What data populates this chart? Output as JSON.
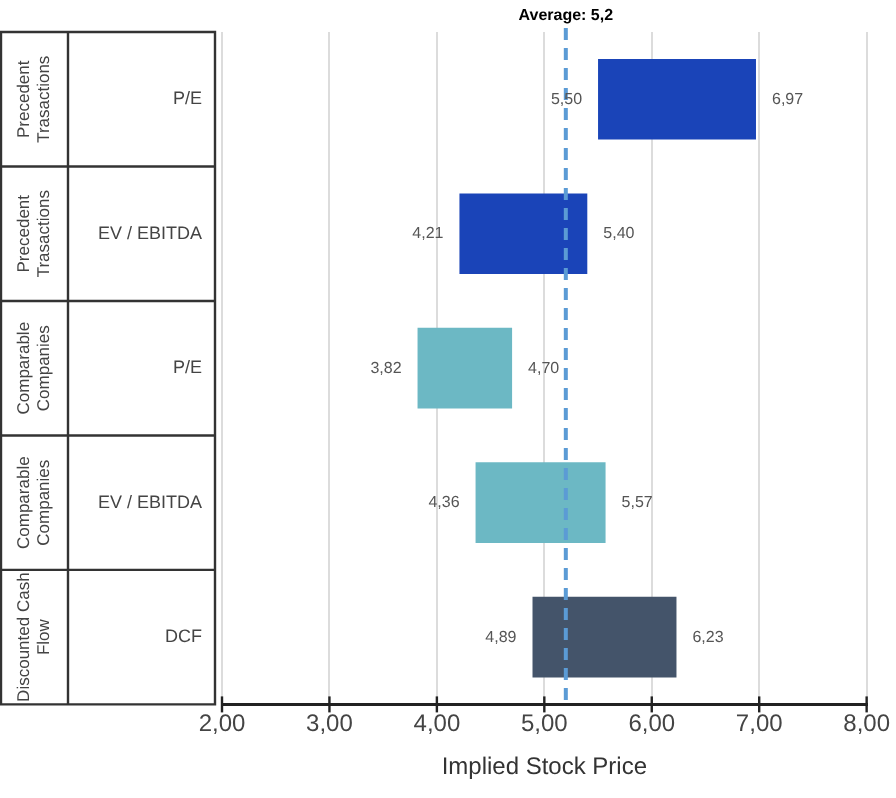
{
  "chart_data": {
    "type": "bar",
    "orientation": "horizontal",
    "xlabel": "Implied Stock Price",
    "categories": [
      "P/E",
      "EV / EBITDA",
      "P/E",
      "EV / EBITDA",
      "DCF"
    ],
    "base": [
      5.5,
      4.21,
      3.82,
      4.36,
      4.89
    ],
    "values": [
      1.47,
      1.19,
      0.88,
      1.21,
      1.34
    ],
    "colors": [
      "#1a44b8",
      "#1a44b8",
      "#6cb8c4",
      "#6cb8c4",
      "#44546a"
    ],
    "xlim": [
      2,
      8
    ],
    "xticks": [
      {
        "value": 2,
        "label": "2,00"
      },
      {
        "value": 3,
        "label": "3,00"
      },
      {
        "value": 4,
        "label": "4,00"
      },
      {
        "value": 5,
        "label": "5,00"
      },
      {
        "value": 6,
        "label": "6,00"
      },
      {
        "value": 7,
        "label": "7,00"
      },
      {
        "value": 8,
        "label": "8,00"
      }
    ],
    "grid": "x",
    "legend": false,
    "ref_lines": [
      {
        "axis": "x",
        "value": 5.2,
        "label": "Average: 5,2",
        "color": "#5b9bd5",
        "line_style": "dashed"
      }
    ],
    "value_labels": [
      "6,97",
      "5,40",
      "4,70",
      "5,57",
      "6,23"
    ],
    "annotations": [
      "Precedent Trasactions",
      "Precedent Trasactions",
      "Comparable Companies",
      "Comparable Companies",
      "Discounted Cash Flow",
      "5,50",
      "4,21",
      "3,82",
      "4,36",
      "4,89"
    ]
  }
}
